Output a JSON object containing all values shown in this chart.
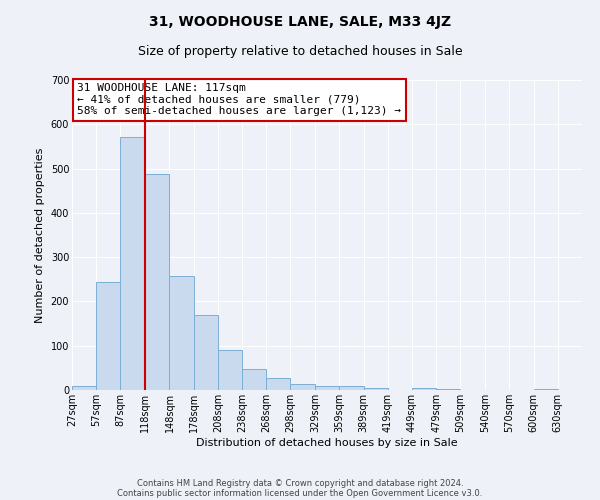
{
  "title": "31, WOODHOUSE LANE, SALE, M33 4JZ",
  "subtitle": "Size of property relative to detached houses in Sale",
  "xlabel": "Distribution of detached houses by size in Sale",
  "ylabel": "Number of detached properties",
  "bar_left_edges": [
    27,
    57,
    87,
    118,
    148,
    178,
    208,
    238,
    268,
    298,
    329,
    359,
    389,
    419,
    449,
    479,
    509,
    540,
    570,
    600
  ],
  "bar_heights": [
    10,
    243,
    572,
    488,
    258,
    170,
    90,
    48,
    27,
    14,
    10,
    8,
    5,
    0,
    4,
    2,
    0,
    0,
    0,
    3
  ],
  "bar_widths": [
    30,
    30,
    30,
    30,
    30,
    30,
    30,
    30,
    30,
    31,
    30,
    30,
    30,
    30,
    30,
    30,
    31,
    30,
    30,
    30
  ],
  "bar_color": "#c9d9ee",
  "bar_edge_color": "#7bafd4",
  "vline_color": "#cc0000",
  "vline_x": 118,
  "annotation_text": "31 WOODHOUSE LANE: 117sqm\n← 41% of detached houses are smaller (779)\n58% of semi-detached houses are larger (1,123) →",
  "annotation_box_edge_color": "#cc0000",
  "annotation_box_face_color": "#ffffff",
  "ylim": [
    0,
    700
  ],
  "yticks": [
    0,
    100,
    200,
    300,
    400,
    500,
    600,
    700
  ],
  "x_tick_labels": [
    "27sqm",
    "57sqm",
    "87sqm",
    "118sqm",
    "148sqm",
    "178sqm",
    "208sqm",
    "238sqm",
    "268sqm",
    "298sqm",
    "329sqm",
    "359sqm",
    "389sqm",
    "419sqm",
    "449sqm",
    "479sqm",
    "509sqm",
    "540sqm",
    "570sqm",
    "600sqm",
    "630sqm"
  ],
  "x_tick_positions": [
    27,
    57,
    87,
    118,
    148,
    178,
    208,
    238,
    268,
    298,
    329,
    359,
    389,
    419,
    449,
    479,
    509,
    540,
    570,
    600,
    630
  ],
  "footer_line1": "Contains HM Land Registry data © Crown copyright and database right 2024.",
  "footer_line2": "Contains public sector information licensed under the Open Government Licence v3.0.",
  "bg_color": "#eef2f8",
  "plot_bg_color": "#eef2f8",
  "grid_color": "#ffffff",
  "title_fontsize": 10,
  "subtitle_fontsize": 9,
  "axis_label_fontsize": 8,
  "tick_fontsize": 7,
  "annotation_fontsize": 8,
  "footer_fontsize": 6
}
